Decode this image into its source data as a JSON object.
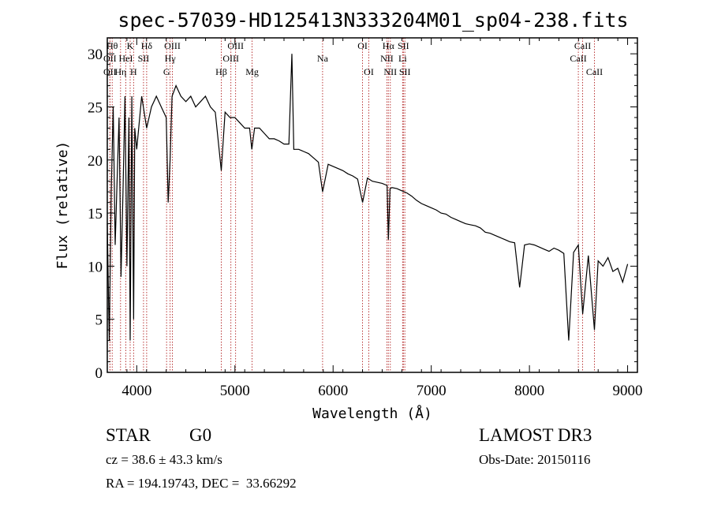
{
  "chart_data": {
    "type": "line",
    "title": "spec-57039-HD125413N333204M01_sp04-238.fits",
    "xlabel": "Wavelength (Å)",
    "ylabel": "Flux (relative)",
    "xlim": [
      3700,
      9100
    ],
    "ylim": [
      0,
      31.5
    ],
    "x_ticks": [
      4000,
      5000,
      6000,
      7000,
      8000,
      9000
    ],
    "y_ticks": [
      0,
      5,
      10,
      15,
      20,
      25,
      30
    ],
    "series": [
      {
        "name": "flux",
        "x": [
          3700,
          3720,
          3740,
          3760,
          3780,
          3800,
          3820,
          3840,
          3860,
          3880,
          3900,
          3920,
          3933,
          3950,
          3968,
          3980,
          4000,
          4050,
          4101,
          4150,
          4200,
          4250,
          4300,
          4320,
          4340,
          4360,
          4400,
          4450,
          4500,
          4550,
          4600,
          4650,
          4700,
          4750,
          4800,
          4861,
          4900,
          4950,
          5000,
          5050,
          5100,
          5150,
          5172,
          5200,
          5250,
          5300,
          5350,
          5400,
          5450,
          5500,
          5550,
          5580,
          5600,
          5650,
          5700,
          5750,
          5800,
          5850,
          5893,
          5950,
          6000,
          6050,
          6100,
          6150,
          6200,
          6250,
          6300,
          6350,
          6400,
          6450,
          6500,
          6550,
          6563,
          6580,
          6600,
          6650,
          6700,
          6750,
          6800,
          6850,
          6900,
          6950,
          7000,
          7050,
          7100,
          7150,
          7200,
          7250,
          7300,
          7350,
          7400,
          7450,
          7500,
          7550,
          7600,
          7650,
          7700,
          7750,
          7800,
          7850,
          7900,
          7950,
          8000,
          8050,
          8100,
          8150,
          8200,
          8250,
          8300,
          8350,
          8400,
          8450,
          8498,
          8542,
          8600,
          8662,
          8700,
          8750,
          8800,
          8850,
          8900,
          8950,
          9000
        ],
        "y": [
          14,
          3,
          17,
          25,
          12,
          18,
          24,
          9,
          17,
          26,
          10,
          24,
          3,
          26,
          5,
          23,
          21,
          26,
          23,
          25,
          26,
          25,
          24,
          16,
          20,
          26,
          27,
          26,
          25.5,
          26,
          25,
          25.5,
          26,
          25,
          24.5,
          19,
          24.5,
          24,
          24,
          23.5,
          23,
          23,
          21,
          23,
          23,
          22.5,
          22,
          22,
          21.8,
          21.5,
          21.5,
          30,
          21,
          21,
          20.8,
          20.6,
          20.2,
          19.8,
          17,
          19.6,
          19.4,
          19.2,
          19,
          18.7,
          18.5,
          18.2,
          16,
          18.3,
          18,
          17.9,
          17.8,
          17.6,
          12.5,
          17.3,
          17.4,
          17.3,
          17.1,
          16.9,
          16.6,
          16.2,
          15.9,
          15.7,
          15.5,
          15.3,
          15,
          14.9,
          14.6,
          14.4,
          14.2,
          14,
          13.9,
          13.8,
          13.6,
          13.2,
          13.1,
          12.9,
          12.7,
          12.5,
          12.3,
          12.2,
          8,
          12,
          12.1,
          12,
          11.8,
          11.6,
          11.4,
          11.7,
          11.5,
          11.2,
          3,
          11.3,
          12,
          5.5,
          11,
          4,
          10.5,
          10,
          10.8,
          9.5,
          9.8,
          8.5,
          10.2
        ]
      }
    ],
    "spectral_lines": [
      {
        "label": "OII",
        "x": 3727,
        "row": 3
      },
      {
        "label": "Hθ",
        "x": 3750,
        "row": 1
      },
      {
        "label": "OII",
        "x": 3727,
        "row": 2
      },
      {
        "label": "Hη",
        "x": 3835,
        "row": 3
      },
      {
        "label": "HeI",
        "x": 3889,
        "row": 2
      },
      {
        "label": "K",
        "x": 3933,
        "row": 1
      },
      {
        "label": "SII",
        "x": 4069,
        "row": 2
      },
      {
        "label": "H",
        "x": 3968,
        "row": 3
      },
      {
        "label": "Hδ",
        "x": 4101,
        "row": 1
      },
      {
        "label": "OIII",
        "x": 4363,
        "row": 1
      },
      {
        "label": "Hγ",
        "x": 4340,
        "row": 2
      },
      {
        "label": "G",
        "x": 4304,
        "row": 3
      },
      {
        "label": "Hβ",
        "x": 4861,
        "row": 3
      },
      {
        "label": "OIII",
        "x": 5007,
        "row": 1
      },
      {
        "label": "OIII",
        "x": 4959,
        "row": 2
      },
      {
        "label": "Mg",
        "x": 5175,
        "row": 3
      },
      {
        "label": "Na",
        "x": 5893,
        "row": 2
      },
      {
        "label": "OI",
        "x": 6300,
        "row": 1
      },
      {
        "label": "OI",
        "x": 6364,
        "row": 3
      },
      {
        "label": "Hα",
        "x": 6563,
        "row": 1
      },
      {
        "label": "SII",
        "x": 6716,
        "row": 1
      },
      {
        "label": "NII",
        "x": 6548,
        "row": 2
      },
      {
        "label": "Li",
        "x": 6708,
        "row": 2
      },
      {
        "label": "NII",
        "x": 6583,
        "row": 3
      },
      {
        "label": "SII",
        "x": 6731,
        "row": 3
      },
      {
        "label": "CaII",
        "x": 8542,
        "row": 1
      },
      {
        "label": "CaII",
        "x": 8498,
        "row": 2
      },
      {
        "label": "CaII",
        "x": 8662,
        "row": 3
      }
    ]
  },
  "footer": {
    "class_label": "STAR",
    "subclass": "G0",
    "survey": "LAMOST DR3",
    "cz": "cz = 38.6 ± 43.3 km/s",
    "obs_date": "Obs-Date: 20150116",
    "coords": "RA = 194.19743, DEC =  33.66292"
  }
}
